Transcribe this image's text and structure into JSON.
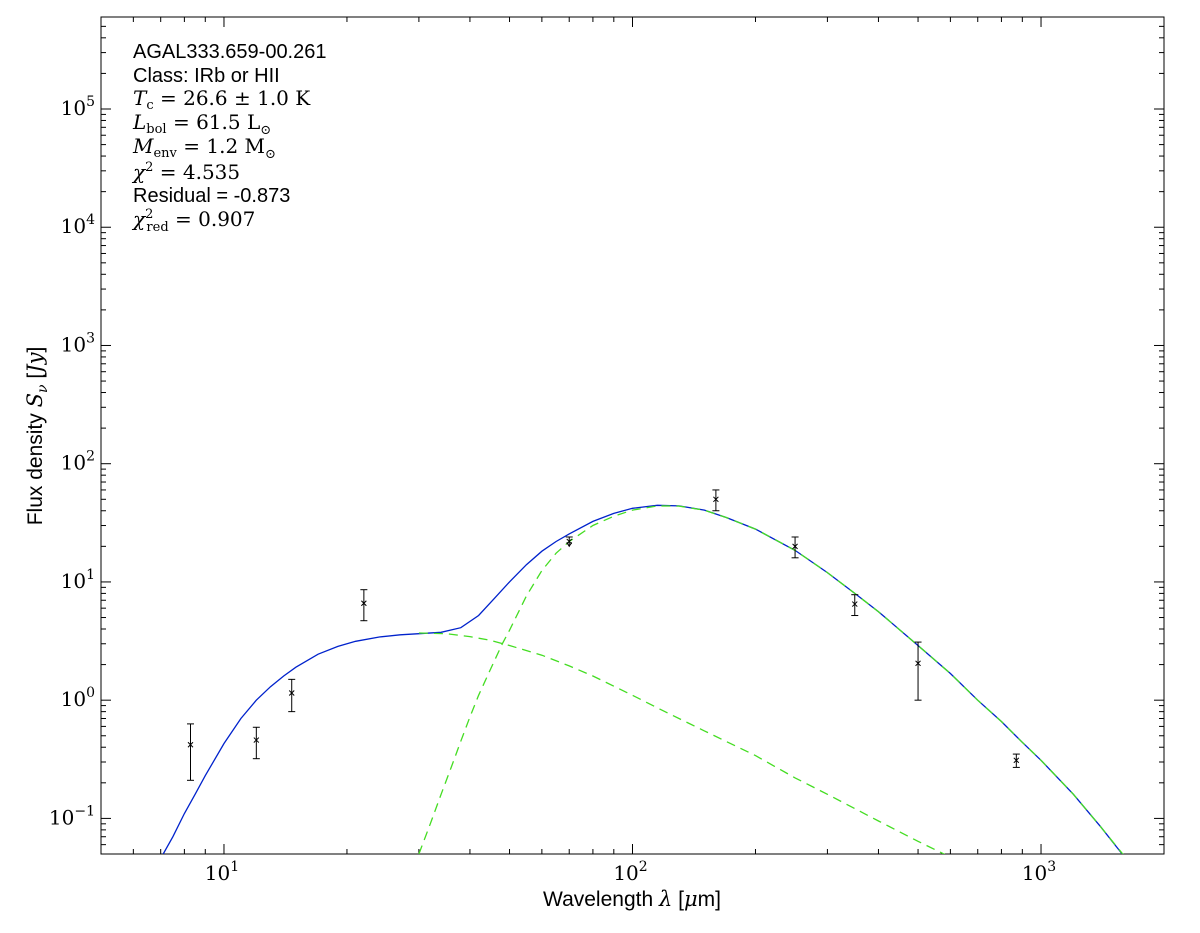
{
  "chart_data": {
    "type": "scatter",
    "x_scale": "log",
    "y_scale": "log",
    "xlim": [
      5,
      2000
    ],
    "ylim": [
      0.05,
      600000
    ],
    "xlabel": "Wavelength λ [μm]",
    "ylabel": "Flux density S_ν [Jy]",
    "xticks": [
      10,
      100,
      1000
    ],
    "yticks": [
      0.1,
      1,
      10,
      100,
      1000,
      10000,
      100000
    ],
    "grid": false,
    "annotations": {
      "source": "AGAL333.659-00.261",
      "class": "Class: IRb or HII",
      "temperature": "T_c = 26.6 ± 1.0 K",
      "luminosity": "L_bol = 61.5 L_⊙",
      "envelope_mass": "M_env = 1.2 M_⊙",
      "chi2": "χ² = 4.535",
      "residual": "Residual = -0.873",
      "chi2_red": "χ²_red = 0.907"
    },
    "points": [
      {
        "x": 8.28,
        "y": 0.42,
        "ylow": 0.21,
        "yhigh": 0.63
      },
      {
        "x": 12.0,
        "y": 0.46,
        "ylow": 0.32,
        "yhigh": 0.59
      },
      {
        "x": 14.65,
        "y": 1.15,
        "ylow": 0.8,
        "yhigh": 1.5
      },
      {
        "x": 22.0,
        "y": 6.6,
        "ylow": 4.7,
        "yhigh": 8.6
      },
      {
        "x": 70,
        "y": 22,
        "ylow": 20,
        "yhigh": 24,
        "upper_limit": true
      },
      {
        "x": 160,
        "y": 50,
        "ylow": 40,
        "yhigh": 60
      },
      {
        "x": 250,
        "y": 20,
        "ylow": 16,
        "yhigh": 24
      },
      {
        "x": 350,
        "y": 6.5,
        "ylow": 5.2,
        "yhigh": 7.8
      },
      {
        "x": 500,
        "y": 2.05,
        "ylow": 1.0,
        "yhigh": 3.1
      },
      {
        "x": 870,
        "y": 0.31,
        "ylow": 0.27,
        "yhigh": 0.35
      }
    ],
    "series": [
      {
        "style": "solid",
        "color": "#0022cc",
        "x": [
          7.1,
          7.5,
          8,
          8.5,
          9,
          10,
          11,
          12,
          13,
          14,
          15,
          17,
          19,
          21,
          24,
          27,
          30,
          34,
          38,
          42,
          46,
          50,
          55,
          60,
          65,
          70,
          80,
          90,
          100,
          115,
          130,
          150,
          170,
          200,
          250,
          300,
          350,
          400,
          500,
          600,
          700,
          800,
          900,
          1000,
          1200,
          1400,
          1580
        ],
        "y": [
          0.05,
          0.07,
          0.11,
          0.16,
          0.23,
          0.43,
          0.7,
          1.0,
          1.3,
          1.6,
          1.9,
          2.45,
          2.85,
          3.15,
          3.42,
          3.57,
          3.65,
          3.75,
          4.1,
          5.2,
          7.3,
          10.0,
          14.0,
          18.2,
          22.0,
          25.5,
          32.5,
          38.0,
          42.0,
          44.5,
          44.0,
          40.5,
          35.0,
          28.0,
          18.5,
          12.0,
          8.0,
          5.6,
          2.9,
          1.68,
          1.0,
          0.66,
          0.44,
          0.31,
          0.16,
          0.085,
          0.05
        ]
      },
      {
        "style": "dashed",
        "color": "#44dd22",
        "x": [
          30,
          32,
          34,
          36,
          38,
          40,
          42,
          45,
          48,
          50,
          55,
          60,
          65,
          70,
          80,
          90,
          100,
          115,
          130,
          150,
          170,
          200,
          250,
          300,
          350,
          400,
          500,
          600,
          700,
          800,
          900,
          1000,
          1200,
          1400,
          1600
        ],
        "y": [
          0.05,
          0.09,
          0.16,
          0.27,
          0.45,
          0.72,
          1.1,
          1.85,
          3.0,
          3.9,
          7.6,
          12.5,
          17.5,
          22.0,
          30.0,
          36.0,
          40.5,
          44.0,
          43.8,
          40.4,
          35.0,
          28.0,
          18.5,
          12.0,
          8.0,
          5.6,
          2.9,
          1.68,
          1.0,
          0.66,
          0.44,
          0.31,
          0.16,
          0.085,
          0.048
        ]
      },
      {
        "style": "dashed",
        "color": "#44dd22",
        "x": [
          30,
          35,
          40,
          45,
          50,
          60,
          70,
          80,
          100,
          120,
          150,
          200,
          250,
          300,
          400,
          500,
          600
        ],
        "y": [
          3.7,
          3.65,
          3.45,
          3.2,
          2.9,
          2.4,
          1.95,
          1.6,
          1.1,
          0.8,
          0.55,
          0.34,
          0.22,
          0.16,
          0.095,
          0.064,
          0.047
        ]
      }
    ]
  }
}
